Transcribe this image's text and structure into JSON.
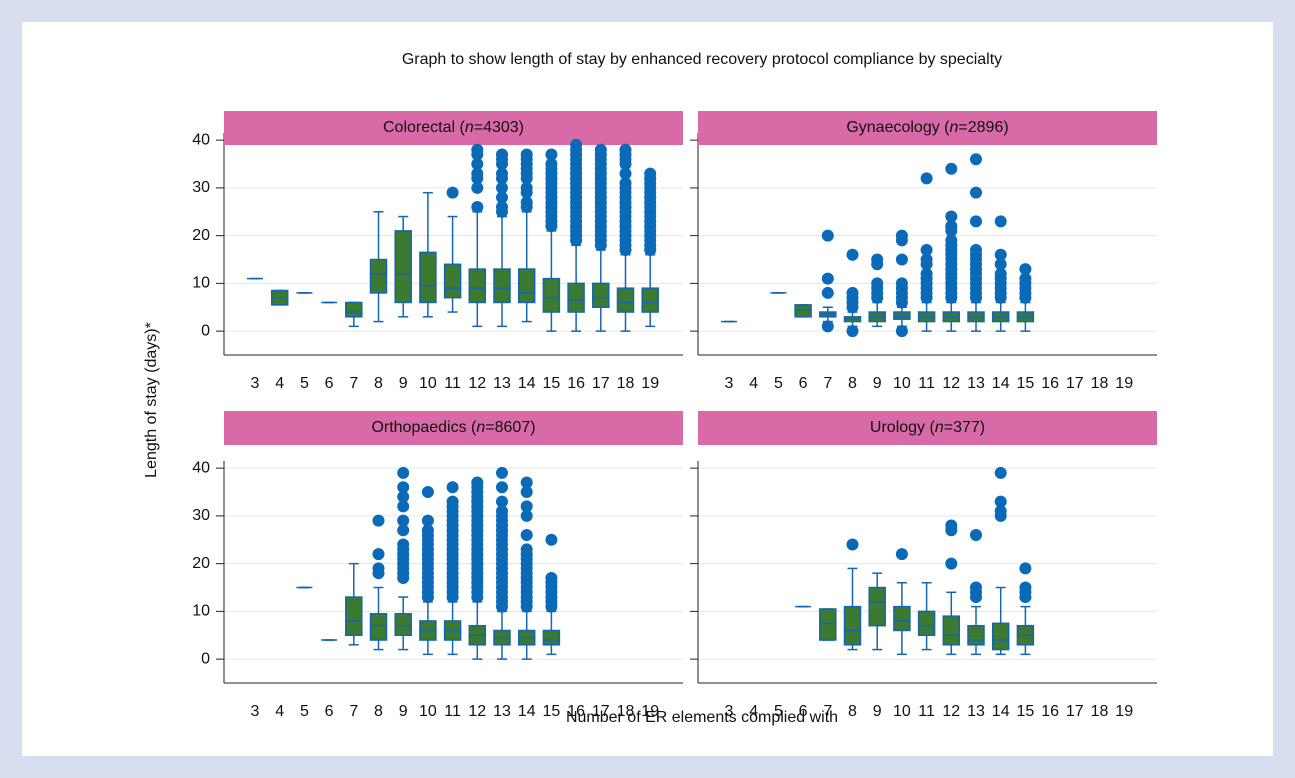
{
  "chart_data": {
    "type": "box",
    "title": "Graph to show length of stay by enhanced recovery protocol compliance by specialty",
    "x_label": "Number of ER elements complied with",
    "y_label": "Length of stay (days)*",
    "categories": [
      3,
      4,
      5,
      6,
      7,
      8,
      9,
      10,
      11,
      12,
      13,
      14,
      15,
      16,
      17,
      18,
      19
    ],
    "ylim": [
      -5,
      41.5
    ],
    "yticks": [
      0,
      10,
      20,
      30,
      40
    ],
    "grid": true,
    "box_color": "#3b7a30",
    "line_color": "#1565b0",
    "outlier_color": "#0a6ab8",
    "header_color": "#d96aa8",
    "panels": [
      {
        "title": "Colorectal (n=4303)",
        "boxes": [
          {
            "min": 11,
            "q1": 11,
            "median": 11,
            "q3": 11,
            "max": 11
          },
          {
            "min": 5.5,
            "q1": 5.5,
            "median": 7,
            "q3": 8.5,
            "max": 8.5
          },
          {
            "min": 8,
            "q1": 8,
            "median": 8,
            "q3": 8,
            "max": 8
          },
          {
            "min": 6,
            "q1": 6,
            "median": 6,
            "q3": 6,
            "max": 6
          },
          {
            "min": 1,
            "q1": 3,
            "median": 4,
            "q3": 6,
            "max": 6
          },
          {
            "min": 2,
            "q1": 8,
            "median": 12,
            "q3": 15,
            "max": 25
          },
          {
            "min": 3,
            "q1": 6,
            "median": 12,
            "q3": 21,
            "max": 24
          },
          {
            "min": 3,
            "q1": 6,
            "median": 9.5,
            "q3": 16.5,
            "max": 29
          },
          {
            "min": 4,
            "q1": 7,
            "median": 9,
            "q3": 14,
            "max": 24,
            "outliers": [
              29
            ]
          },
          {
            "min": 1,
            "q1": 6,
            "median": 9,
            "q3": 13,
            "max": 25,
            "outliers": [
              26,
              30,
              32,
              33,
              35,
              37,
              38
            ]
          },
          {
            "min": 1,
            "q1": 6,
            "median": 9,
            "q3": 13,
            "max": 24,
            "outliers": [
              25,
              26,
              28,
              30,
              32,
              33,
              35,
              36,
              37
            ]
          },
          {
            "min": 2,
            "q1": 6,
            "median": 8,
            "q3": 13,
            "max": 25,
            "outliers": [
              26,
              27,
              29,
              30,
              32,
              33,
              34,
              35,
              36,
              37
            ]
          },
          {
            "min": 0,
            "q1": 4,
            "median": 7,
            "q3": 11,
            "max": 21,
            "outliers": [
              22,
              23,
              24,
              25,
              26,
              27,
              28,
              29,
              30,
              31,
              32,
              33,
              34,
              35,
              37
            ]
          },
          {
            "min": 0,
            "q1": 4,
            "median": 6.5,
            "q3": 10,
            "max": 18,
            "outliers": [
              19,
              20,
              21,
              22,
              23,
              24,
              25,
              26,
              27,
              28,
              29,
              30,
              31,
              32,
              33,
              34,
              35,
              36,
              37,
              38,
              39
            ]
          },
          {
            "min": 0,
            "q1": 5,
            "median": 7,
            "q3": 10,
            "max": 17,
            "outliers": [
              18,
              19,
              20,
              21,
              22,
              23,
              24,
              25,
              26,
              27,
              28,
              29,
              30,
              31,
              32,
              33,
              34,
              35,
              36,
              37,
              38
            ]
          },
          {
            "min": 0,
            "q1": 4,
            "median": 6,
            "q3": 9,
            "max": 16,
            "outliers": [
              17,
              18,
              19,
              20,
              21,
              22,
              23,
              24,
              25,
              26,
              27,
              28,
              29,
              30,
              31,
              33,
              35,
              36,
              37,
              38
            ]
          },
          {
            "min": 1,
            "q1": 4,
            "median": 6,
            "q3": 9,
            "max": 16,
            "outliers": [
              17,
              18,
              19,
              20,
              21,
              22,
              23,
              24,
              25,
              26,
              27,
              28,
              29,
              30,
              31,
              32,
              33
            ]
          }
        ]
      },
      {
        "title": "Gynaecology (n=2896)",
        "boxes": [
          {
            "min": 2,
            "q1": 2,
            "median": 2,
            "q3": 2,
            "max": 2
          },
          null,
          {
            "min": 8,
            "q1": 8,
            "median": 8,
            "q3": 8,
            "max": 8
          },
          {
            "min": 3,
            "q1": 3,
            "median": 4.5,
            "q3": 5.5,
            "max": 5.5
          },
          {
            "min": 2,
            "q1": 3,
            "median": 3.5,
            "q3": 4,
            "max": 5,
            "outliers": [
              1,
              8,
              11,
              20
            ]
          },
          {
            "min": 1,
            "q1": 2,
            "median": 2.5,
            "q3": 3,
            "max": 4,
            "outliers": [
              0,
              5,
              6,
              7,
              8,
              16
            ]
          },
          {
            "min": 1,
            "q1": 2,
            "median": 3,
            "q3": 4,
            "max": 6,
            "outliers": [
              7,
              8,
              9,
              10,
              14,
              15
            ]
          },
          {
            "min": 1,
            "q1": 2.5,
            "median": 3,
            "q3": 4,
            "max": 5,
            "outliers": [
              0,
              6,
              7,
              8,
              9,
              10,
              15,
              19,
              20
            ]
          },
          {
            "min": 0,
            "q1": 2,
            "median": 3,
            "q3": 4,
            "max": 6,
            "outliers": [
              7,
              8,
              9,
              10,
              11,
              12,
              14,
              15,
              17,
              32
            ]
          },
          {
            "min": 0,
            "q1": 2,
            "median": 3,
            "q3": 4,
            "max": 6,
            "outliers": [
              7,
              8,
              9,
              10,
              11,
              12,
              13,
              14,
              15,
              16,
              17,
              18,
              19,
              21,
              22,
              24,
              34
            ]
          },
          {
            "min": 0,
            "q1": 2,
            "median": 3,
            "q3": 4,
            "max": 6,
            "outliers": [
              7,
              8,
              9,
              10,
              11,
              12,
              13,
              14,
              15,
              16,
              17,
              23,
              29,
              36
            ]
          },
          {
            "min": 0,
            "q1": 2,
            "median": 3,
            "q3": 4,
            "max": 6,
            "outliers": [
              7,
              8,
              9,
              10,
              11,
              12,
              14,
              16,
              23
            ]
          },
          {
            "min": 0,
            "q1": 2,
            "median": 3,
            "q3": 4,
            "max": 6,
            "outliers": [
              7,
              8,
              9,
              10,
              11,
              13
            ]
          },
          null,
          null,
          null,
          null
        ]
      },
      {
        "title": "Orthopaedics (n=8607)",
        "boxes": [
          null,
          null,
          {
            "min": 15,
            "q1": 15,
            "median": 15,
            "q3": 15,
            "max": 15
          },
          {
            "min": 4,
            "q1": 4,
            "median": 4,
            "q3": 4,
            "max": 4
          },
          {
            "min": 3,
            "q1": 5,
            "median": 8,
            "q3": 13,
            "max": 20
          },
          {
            "min": 2,
            "q1": 4,
            "median": 7,
            "q3": 9.5,
            "max": 15,
            "outliers": [
              18,
              19,
              22,
              29
            ]
          },
          {
            "min": 2,
            "q1": 5,
            "median": 7,
            "q3": 9.5,
            "max": 13,
            "outliers": [
              17,
              18,
              19,
              20,
              21,
              22,
              23,
              24,
              27,
              29,
              32,
              34,
              36,
              39
            ]
          },
          {
            "min": 1,
            "q1": 4,
            "median": 6,
            "q3": 8,
            "max": 12,
            "outliers": [
              13,
              14,
              15,
              16,
              17,
              18,
              19,
              20,
              21,
              22,
              23,
              24,
              25,
              26,
              27,
              29,
              35
            ]
          },
          {
            "min": 1,
            "q1": 4,
            "median": 6,
            "q3": 8,
            "max": 12,
            "outliers": [
              13,
              14,
              15,
              16,
              17,
              18,
              19,
              20,
              21,
              22,
              23,
              24,
              25,
              26,
              27,
              28,
              29,
              30,
              31,
              32,
              33,
              36
            ]
          },
          {
            "min": 0,
            "q1": 3,
            "median": 5,
            "q3": 7,
            "max": 12,
            "outliers": [
              13,
              14,
              15,
              16,
              17,
              18,
              19,
              20,
              21,
              22,
              23,
              24,
              25,
              26,
              27,
              28,
              29,
              30,
              31,
              32,
              33,
              34,
              35,
              36,
              37
            ]
          },
          {
            "min": 0,
            "q1": 3,
            "median": 4.5,
            "q3": 6,
            "max": 10,
            "outliers": [
              11,
              12,
              13,
              14,
              15,
              16,
              17,
              18,
              19,
              20,
              21,
              22,
              23,
              24,
              25,
              26,
              27,
              28,
              29,
              30,
              31,
              33,
              36,
              39
            ]
          },
          {
            "min": 0,
            "q1": 3,
            "median": 4.5,
            "q3": 6,
            "max": 10,
            "outliers": [
              11,
              12,
              13,
              14,
              15,
              16,
              17,
              18,
              19,
              20,
              21,
              22,
              23,
              26,
              30,
              32,
              35,
              37
            ]
          },
          {
            "min": 1,
            "q1": 3,
            "median": 4,
            "q3": 6,
            "max": 10,
            "outliers": [
              11,
              12,
              13,
              14,
              15,
              16,
              17,
              25
            ]
          },
          null,
          null,
          null,
          null
        ]
      },
      {
        "title": "Urology (n=377)",
        "boxes": [
          null,
          null,
          null,
          {
            "min": 11,
            "q1": 11,
            "median": 11,
            "q3": 11,
            "max": 11
          },
          {
            "min": 4,
            "q1": 4,
            "median": 7.5,
            "q3": 10.5,
            "max": 10.5
          },
          {
            "min": 2,
            "q1": 3,
            "median": 6,
            "q3": 11,
            "max": 19,
            "outliers": [
              24
            ]
          },
          {
            "min": 2,
            "q1": 7,
            "median": 12,
            "q3": 15,
            "max": 18
          },
          {
            "min": 1,
            "q1": 6,
            "median": 8,
            "q3": 11,
            "max": 16,
            "outliers": [
              22
            ]
          },
          {
            "min": 2,
            "q1": 5,
            "median": 7,
            "q3": 10,
            "max": 16
          },
          {
            "min": 1,
            "q1": 3,
            "median": 5,
            "q3": 9,
            "max": 14,
            "outliers": [
              20,
              27,
              28
            ]
          },
          {
            "min": 1,
            "q1": 3,
            "median": 4,
            "q3": 7,
            "max": 11,
            "outliers": [
              13,
              14,
              15,
              26
            ]
          },
          {
            "min": 1,
            "q1": 2,
            "median": 4,
            "q3": 7.5,
            "max": 15,
            "outliers": [
              30,
              31,
              33,
              39
            ]
          },
          {
            "min": 1,
            "q1": 3,
            "median": 5,
            "q3": 7,
            "max": 11,
            "outliers": [
              13,
              14,
              15,
              19
            ]
          },
          null,
          null,
          null,
          null
        ]
      }
    ]
  }
}
